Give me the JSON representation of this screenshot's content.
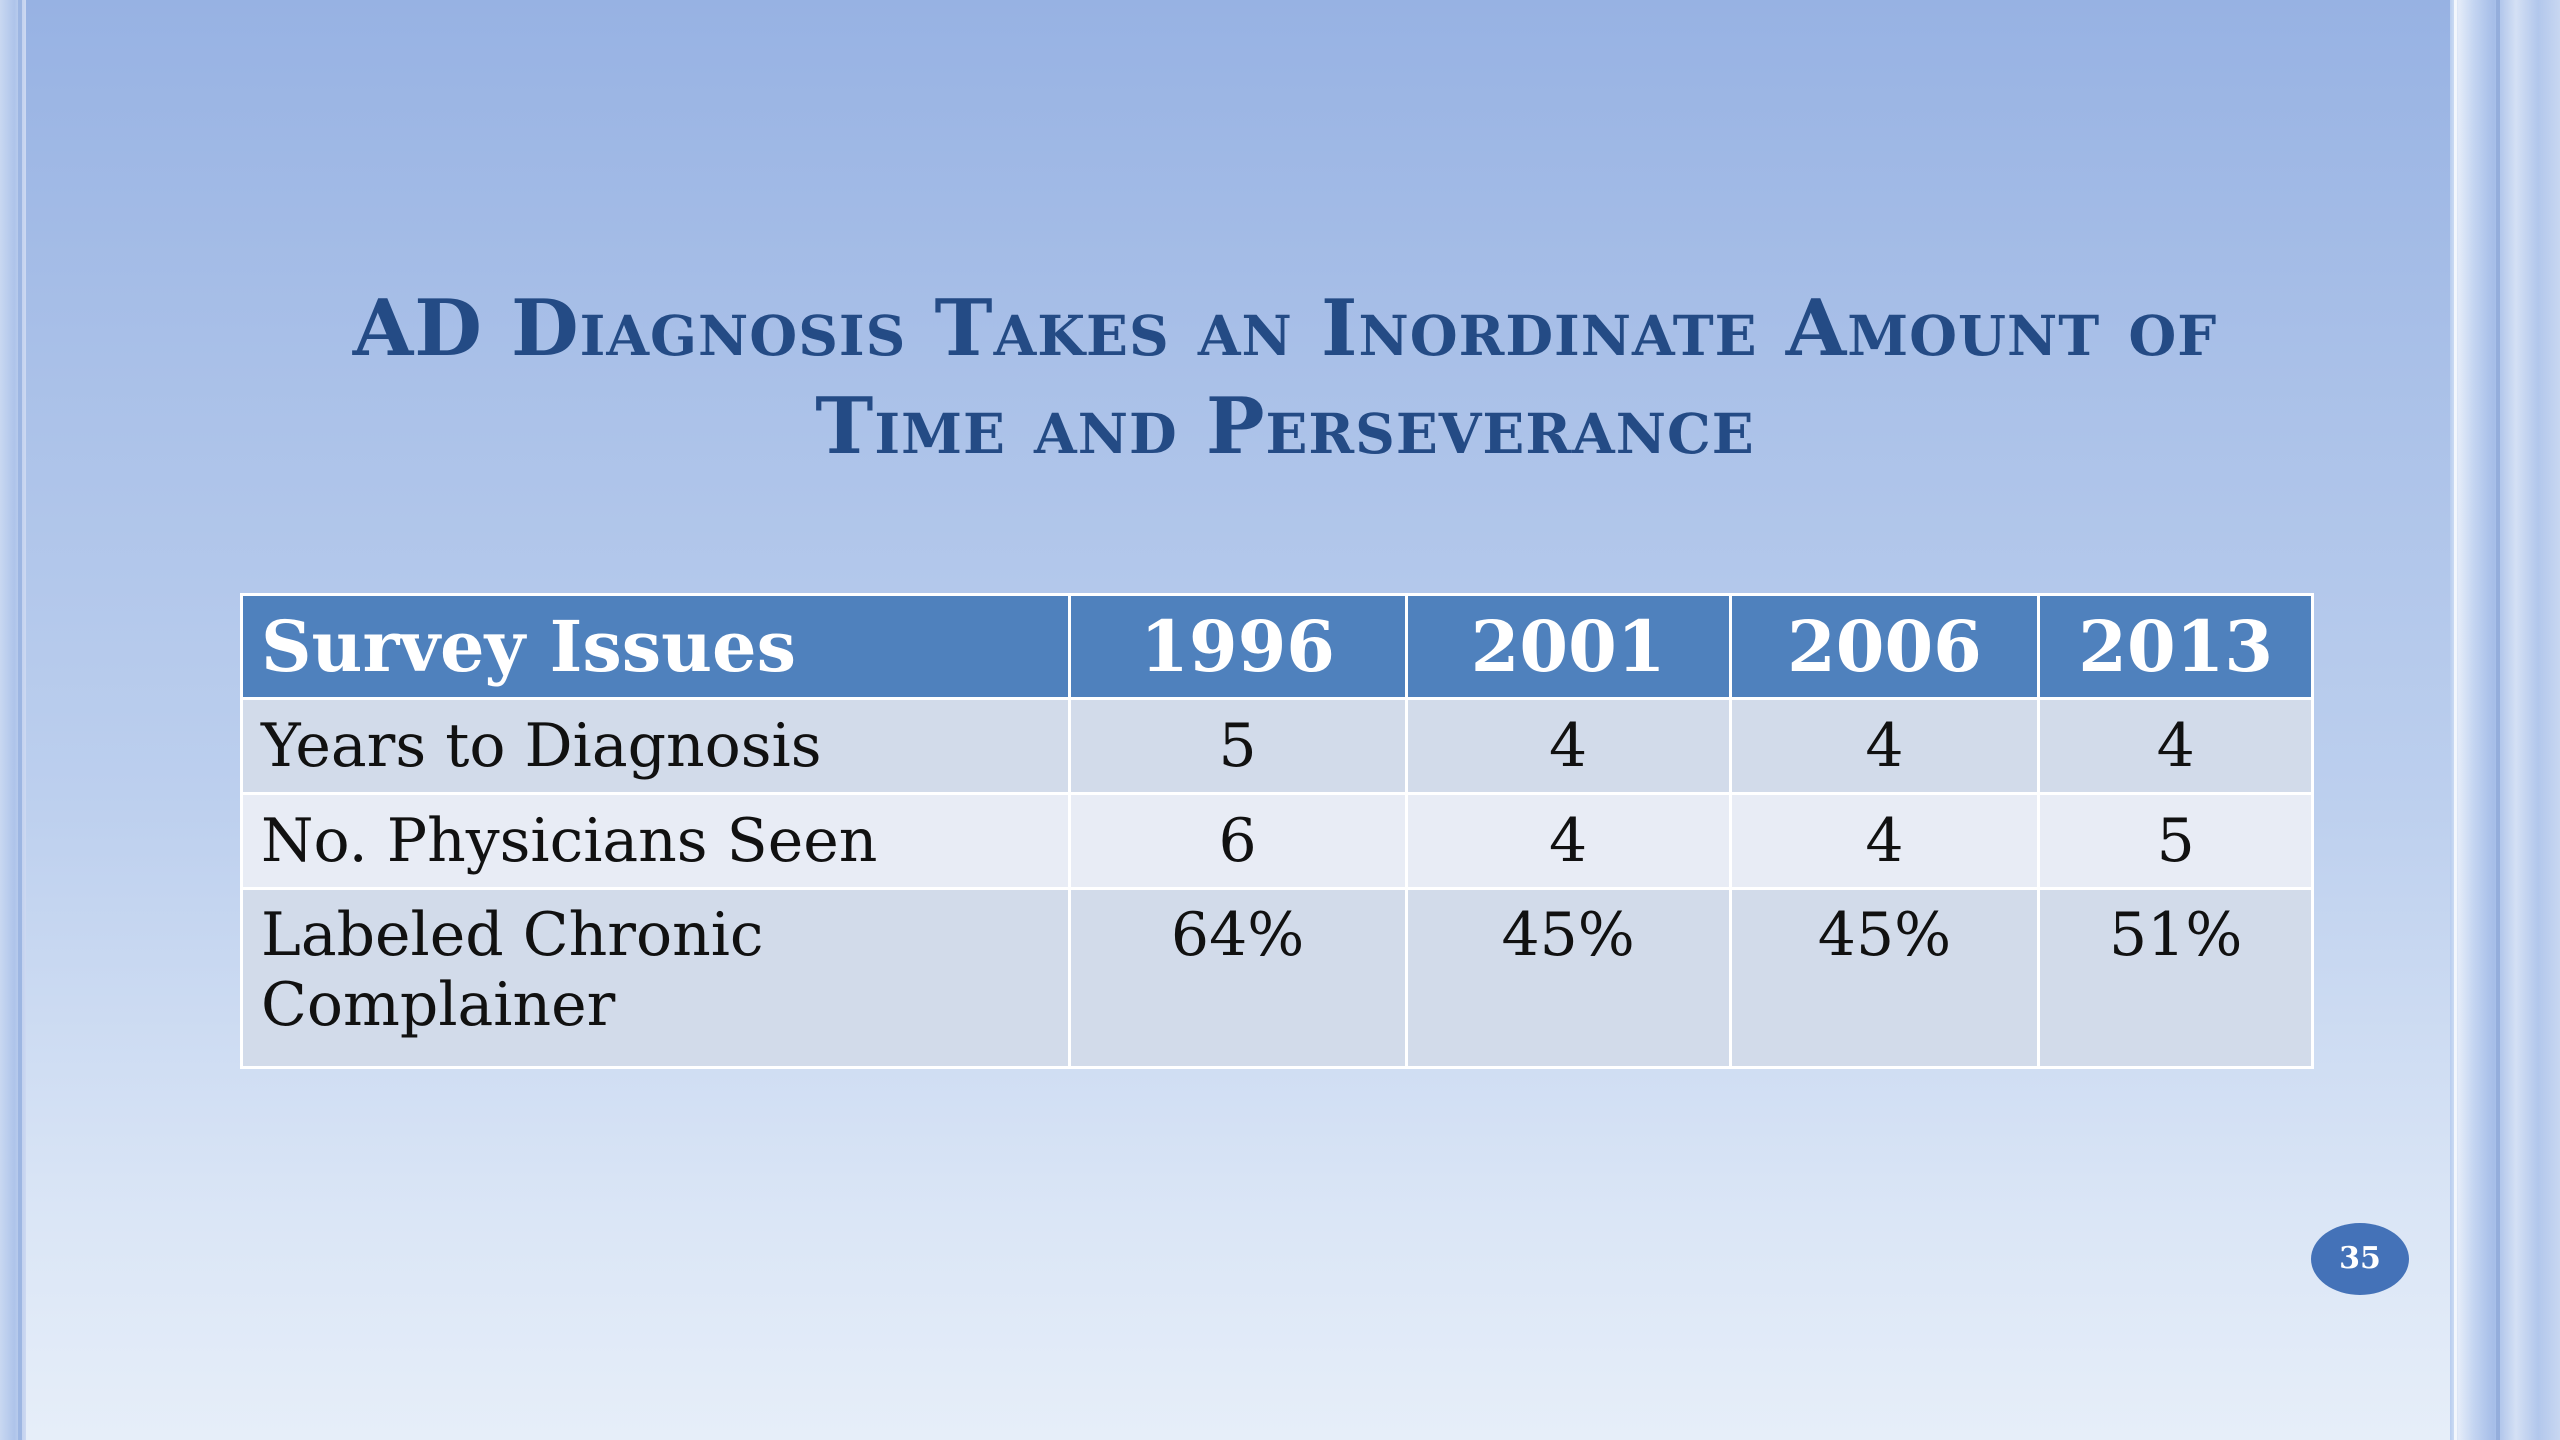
{
  "slide": {
    "title_line1": "AD Diagnosis Takes an Inordinate Amount of",
    "title_line2": "Time and Perseverance",
    "page_number": "35"
  },
  "table": {
    "headers": [
      "Survey Issues",
      "1996",
      "2001",
      "2006",
      "2013"
    ],
    "rows": [
      {
        "label": "Years to Diagnosis",
        "values": [
          "5",
          "4",
          "4",
          "4"
        ]
      },
      {
        "label": "No. Physicians Seen",
        "values": [
          "6",
          "4",
          "4",
          "5"
        ]
      },
      {
        "label_line1": "Labeled Chronic",
        "label_line2": "Complainer",
        "values": [
          "64%",
          "45%",
          "45%",
          "51%"
        ]
      }
    ]
  },
  "colors": {
    "title": "#244b85",
    "header_bg": "#4f81bd",
    "row_odd": "#d2dbea",
    "row_even": "#e8ecf5",
    "badge": "#4472b8"
  }
}
